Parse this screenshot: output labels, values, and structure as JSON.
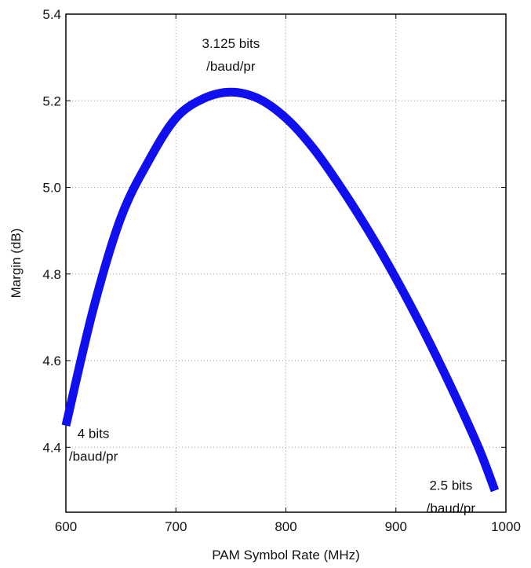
{
  "chart_data": {
    "type": "line",
    "title": "",
    "xlabel": "PAM Symbol Rate (MHz)",
    "ylabel": "Margin (dB)",
    "xlim": [
      600,
      1000
    ],
    "ylim": [
      4.25,
      5.4
    ],
    "x_ticks": [
      "600",
      "700",
      "800",
      "900",
      "1000"
    ],
    "y_ticks": [
      "4.4",
      "4.6",
      "4.8",
      "5.0",
      "5.2",
      "5.4"
    ],
    "grid": true,
    "series": [
      {
        "color": "#1010ee",
        "x": [
          600,
          625,
          650,
          675,
          700,
          725,
          750,
          775,
          800,
          825,
          850,
          875,
          900,
          925,
          950,
          975,
          990
        ],
        "y": [
          4.45,
          4.72,
          4.93,
          5.06,
          5.16,
          5.205,
          5.22,
          5.205,
          5.16,
          5.09,
          5.0,
          4.9,
          4.79,
          4.67,
          4.54,
          4.4,
          4.3
        ]
      }
    ],
    "annotations": [
      {
        "lines": [
          "4 bits",
          "/baud/pr"
        ],
        "x": 625,
        "y": 4.4
      },
      {
        "lines": [
          "3.125 bits",
          "/baud/pr"
        ],
        "x": 750,
        "y": 5.3
      },
      {
        "lines": [
          "2.5 bits",
          "/baud/pr"
        ],
        "x": 950,
        "y": 4.28
      }
    ]
  }
}
